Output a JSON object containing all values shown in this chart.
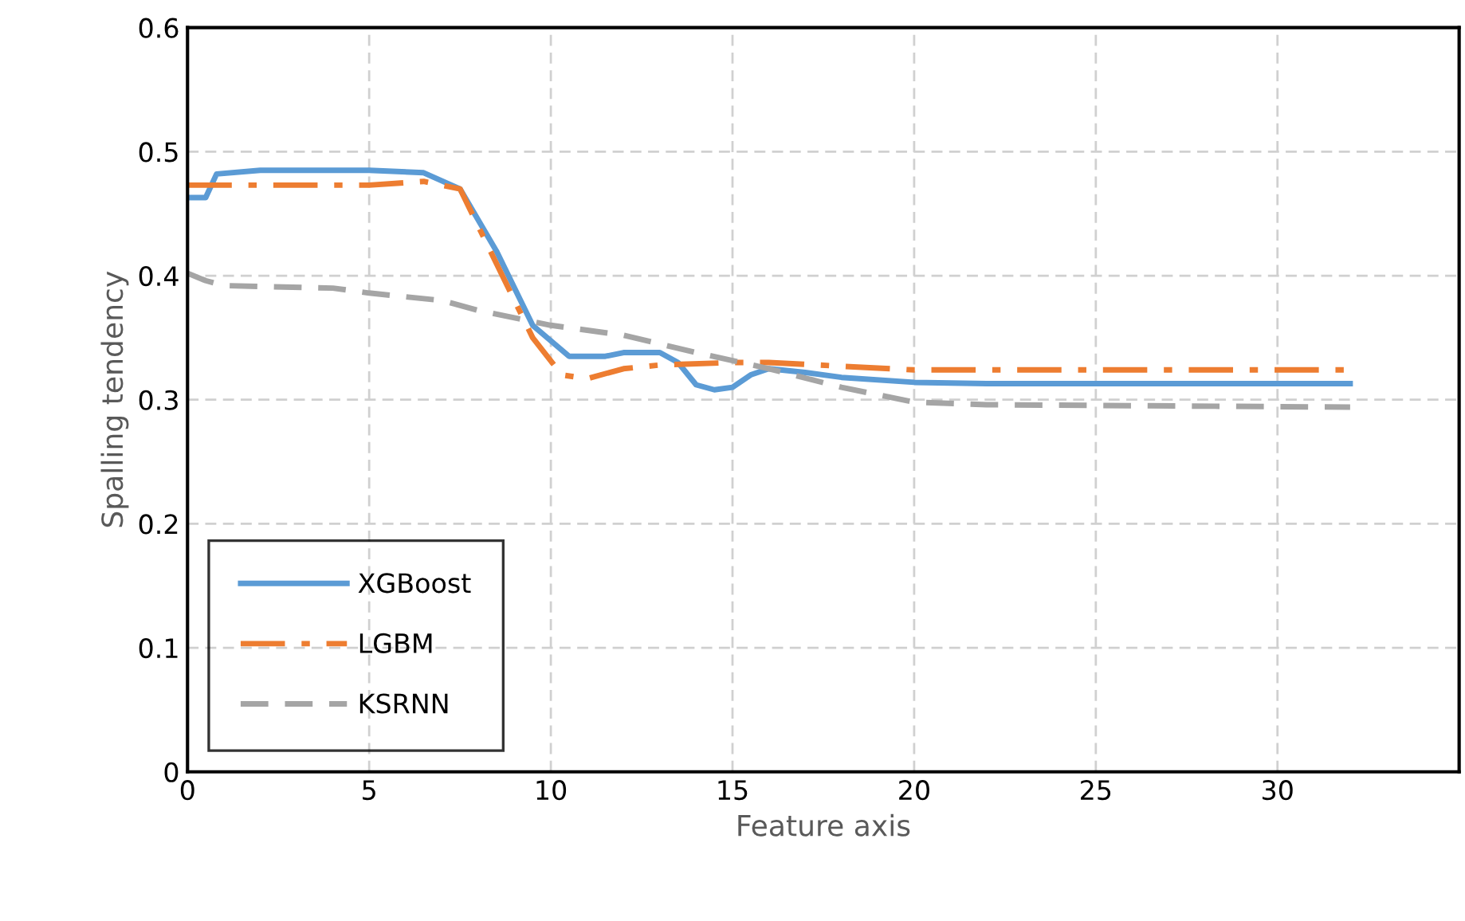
{
  "chart_data": {
    "type": "line",
    "xlabel": "Feature axis",
    "ylabel": "Spalling tendency",
    "xlim": [
      0,
      35
    ],
    "xticks": [
      0,
      5,
      10,
      15,
      20,
      25,
      30
    ],
    "ylim": [
      0,
      0.6
    ],
    "yticks": [
      0,
      0.1,
      0.2,
      0.3,
      0.4,
      0.5,
      0.6
    ],
    "grid": true,
    "legend": "bottom left",
    "marker": "none",
    "series": [
      {
        "name": "XGBoost",
        "color": "#5b9bd5",
        "line_style": "solid",
        "x": [
          0,
          0.5,
          0.8,
          2,
          5,
          6.5,
          7.5,
          8.5,
          9.5,
          10.5,
          11.5,
          12,
          13,
          13.5,
          14,
          14.5,
          15,
          15.5,
          16,
          17,
          18,
          20,
          22,
          32
        ],
        "values": [
          0.463,
          0.463,
          0.482,
          0.485,
          0.485,
          0.483,
          0.47,
          0.42,
          0.36,
          0.335,
          0.335,
          0.338,
          0.338,
          0.33,
          0.312,
          0.308,
          0.31,
          0.32,
          0.325,
          0.322,
          0.318,
          0.314,
          0.313,
          0.313
        ]
      },
      {
        "name": "LGBM",
        "color": "#ed7d31",
        "line_style": "dashdot",
        "x": [
          0,
          5,
          6.5,
          7.5,
          8.5,
          9.5,
          10.3,
          11,
          12,
          13,
          15,
          16,
          18,
          20,
          32
        ],
        "values": [
          0.473,
          0.473,
          0.476,
          0.47,
          0.41,
          0.35,
          0.32,
          0.317,
          0.325,
          0.328,
          0.33,
          0.33,
          0.327,
          0.324,
          0.324
        ]
      },
      {
        "name": "KSRNN",
        "color": "#a5a5a5",
        "line_style": "dashed",
        "x": [
          0,
          0.5,
          1,
          4,
          5,
          7,
          8,
          10,
          12,
          14,
          16,
          18,
          20,
          22,
          32
        ],
        "values": [
          0.402,
          0.396,
          0.392,
          0.39,
          0.386,
          0.38,
          0.372,
          0.36,
          0.352,
          0.338,
          0.325,
          0.31,
          0.298,
          0.296,
          0.294
        ]
      }
    ]
  }
}
